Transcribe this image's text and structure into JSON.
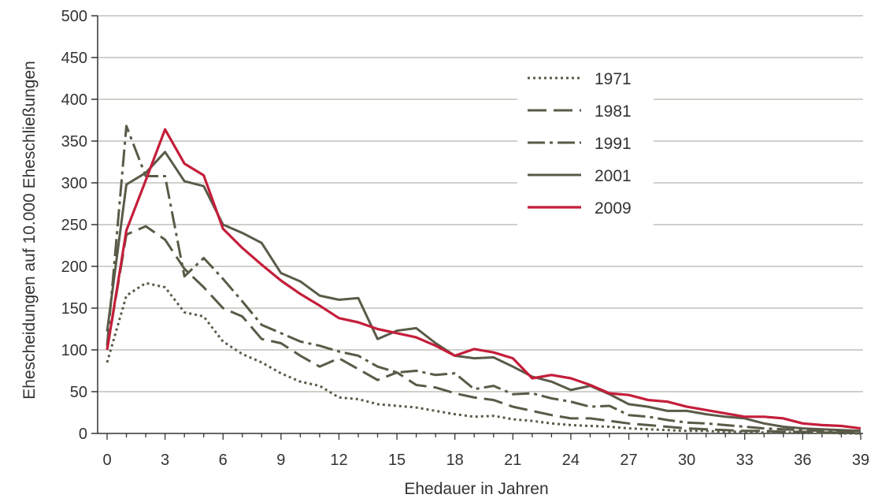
{
  "chart_data": {
    "type": "line",
    "xlabel": "Ehedauer in Jahren",
    "ylabel": "Ehescheidungen auf 10.000 Eheschließungen",
    "xlim": [
      0,
      39
    ],
    "ylim": [
      0,
      500
    ],
    "x_ticks": [
      "0",
      "3",
      "6",
      "9",
      "12",
      "15",
      "18",
      "21",
      "24",
      "27",
      "30",
      "33",
      "36",
      "39"
    ],
    "y_ticks": [
      "0",
      "50",
      "100",
      "150",
      "200",
      "250",
      "300",
      "350",
      "400",
      "450",
      "500"
    ],
    "grid": "horizontal",
    "legend_position": "top-right",
    "x": [
      0,
      1,
      2,
      3,
      4,
      5,
      6,
      7,
      8,
      9,
      10,
      11,
      12,
      13,
      14,
      15,
      16,
      17,
      18,
      19,
      20,
      21,
      22,
      23,
      24,
      25,
      26,
      27,
      28,
      29,
      30,
      31,
      32,
      33,
      34,
      35,
      36,
      37,
      38,
      39
    ],
    "series": [
      {
        "name": "1971",
        "color": "#5a5a48",
        "dash": "dotted",
        "values": [
          85,
          165,
          180,
          175,
          145,
          140,
          110,
          95,
          85,
          72,
          62,
          57,
          43,
          41,
          35,
          33,
          31,
          27,
          23,
          20,
          21,
          17,
          15,
          12,
          10,
          9,
          8,
          6,
          5,
          4,
          3,
          3,
          2,
          2,
          1,
          1,
          1,
          1,
          0,
          0
        ]
      },
      {
        "name": "1981",
        "color": "#5a5a48",
        "dash": "dashed",
        "values": [
          100,
          238,
          248,
          232,
          197,
          175,
          150,
          140,
          113,
          108,
          93,
          80,
          90,
          77,
          64,
          73,
          58,
          55,
          48,
          43,
          40,
          32,
          27,
          22,
          18,
          18,
          15,
          12,
          10,
          8,
          6,
          5,
          4,
          3,
          3,
          2,
          2,
          1,
          1,
          0
        ]
      },
      {
        "name": "1991",
        "color": "#5a5a48",
        "dash": "dashdot",
        "values": [
          105,
          368,
          308,
          308,
          188,
          210,
          185,
          158,
          130,
          120,
          110,
          105,
          98,
          93,
          80,
          73,
          75,
          70,
          72,
          53,
          57,
          47,
          48,
          42,
          38,
          32,
          33,
          22,
          20,
          16,
          13,
          12,
          10,
          8,
          6,
          5,
          4,
          3,
          2,
          1
        ]
      },
      {
        "name": "2001",
        "color": "#5a5a48",
        "dash": "solid",
        "values": [
          122,
          298,
          312,
          337,
          302,
          296,
          250,
          240,
          228,
          192,
          182,
          165,
          160,
          162,
          113,
          123,
          126,
          108,
          93,
          90,
          91,
          80,
          68,
          62,
          52,
          57,
          47,
          35,
          32,
          27,
          27,
          23,
          20,
          18,
          12,
          8,
          6,
          5,
          4,
          3
        ]
      },
      {
        "name": "2009",
        "color": "#c41e3a",
        "dash": "solid",
        "values": [
          100,
          243,
          303,
          364,
          323,
          309,
          245,
          222,
          202,
          183,
          167,
          153,
          138,
          133,
          125,
          120,
          115,
          105,
          93,
          101,
          97,
          90,
          66,
          70,
          66,
          58,
          48,
          46,
          40,
          38,
          32,
          28,
          24,
          20,
          20,
          18,
          12,
          10,
          9,
          6
        ]
      }
    ]
  }
}
